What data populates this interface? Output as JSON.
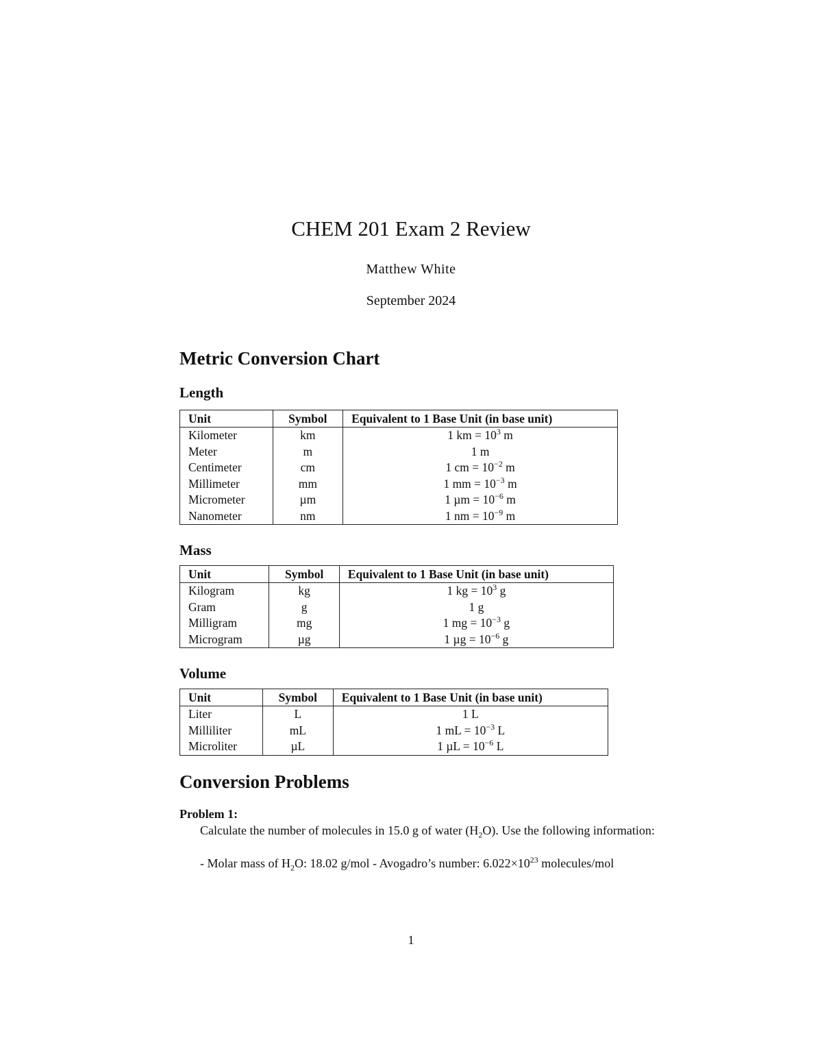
{
  "header": {
    "title": "CHEM 201 Exam 2 Review",
    "author": "Matthew White",
    "date": "September 2024"
  },
  "section1": {
    "heading": "Metric Conversion Chart",
    "columns": [
      "Unit",
      "Symbol",
      "Equivalent to 1 Base Unit (in base unit)"
    ],
    "length": {
      "heading": "Length",
      "rows": [
        {
          "unit": "Kilometer",
          "symbol": "km",
          "eq": {
            "pre": "1 km = 10",
            "exp": "3",
            "post": " m"
          }
        },
        {
          "unit": "Meter",
          "symbol": "m",
          "eq": {
            "pre": "1 m",
            "exp": "",
            "post": ""
          }
        },
        {
          "unit": "Centimeter",
          "symbol": "cm",
          "eq": {
            "pre": "1 cm = 10",
            "exp": "−2",
            "post": " m"
          }
        },
        {
          "unit": "Millimeter",
          "symbol": "mm",
          "eq": {
            "pre": "1 mm = 10",
            "exp": "−3",
            "post": " m"
          }
        },
        {
          "unit": "Micrometer",
          "symbol": "µm",
          "eq": {
            "pre": "1 µm = 10",
            "exp": "−6",
            "post": " m"
          }
        },
        {
          "unit": "Nanometer",
          "symbol": "nm",
          "eq": {
            "pre": "1 nm = 10",
            "exp": "−9",
            "post": " m"
          }
        }
      ]
    },
    "mass": {
      "heading": "Mass",
      "rows": [
        {
          "unit": "Kilogram",
          "symbol": "kg",
          "eq": {
            "pre": "1 kg = 10",
            "exp": "3",
            "post": " g"
          }
        },
        {
          "unit": "Gram",
          "symbol": "g",
          "eq": {
            "pre": "1 g",
            "exp": "",
            "post": ""
          }
        },
        {
          "unit": "Milligram",
          "symbol": "mg",
          "eq": {
            "pre": "1 mg = 10",
            "exp": "−3",
            "post": " g"
          }
        },
        {
          "unit": "Microgram",
          "symbol": "µg",
          "eq": {
            "pre": "1 µg = 10",
            "exp": "−6",
            "post": " g"
          }
        }
      ]
    },
    "volume": {
      "heading": "Volume",
      "rows": [
        {
          "unit": "Liter",
          "symbol": "L",
          "eq": {
            "pre": "1 L",
            "exp": "",
            "post": ""
          }
        },
        {
          "unit": "Milliliter",
          "symbol": "mL",
          "eq": {
            "pre": "1 mL = 10",
            "exp": "−3",
            "post": " L"
          }
        },
        {
          "unit": "Microliter",
          "symbol": "µL",
          "eq": {
            "pre": "1 µL = 10",
            "exp": "−6",
            "post": " L"
          }
        }
      ]
    }
  },
  "section2": {
    "heading": "Conversion Problems",
    "problem1": {
      "label": "Problem 1:",
      "text_a": "Calculate the number of molecules in 15.0 g of water (H",
      "sub_a": "2",
      "text_b": "O). Use the following information:",
      "info_a": "- Molar mass of H",
      "info_sub": "2",
      "info_b": "O: 18.02 g/mol - Avogadro’s number: 6.022×10",
      "info_exp": "23",
      "info_c": " molecules/mol"
    }
  },
  "footer": {
    "page_number": "1"
  }
}
